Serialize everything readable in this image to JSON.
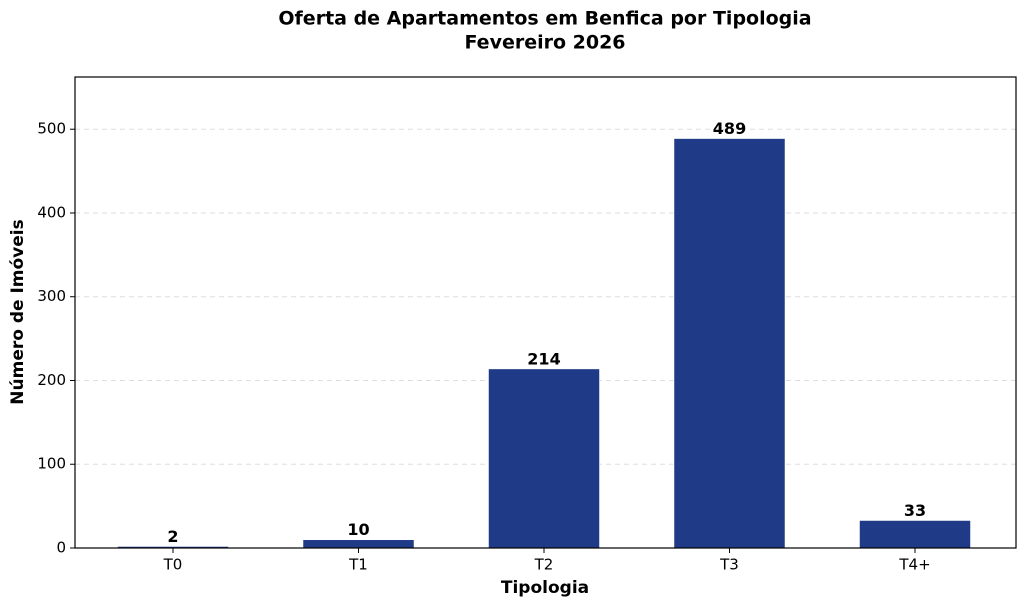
{
  "chart_data": {
    "type": "bar",
    "title": "Oferta de Apartamentos em Benfica por Tipologia",
    "subtitle": "Fevereiro 2026",
    "xlabel": "Tipologia",
    "ylabel": "Número de Imóveis",
    "categories": [
      "T0",
      "T1",
      "T2",
      "T3",
      "T4+"
    ],
    "values": [
      2,
      10,
      214,
      489,
      33
    ],
    "color": "#1f3a87",
    "ylim": [
      0,
      562.35
    ],
    "yticks": [
      0,
      100,
      200,
      300,
      400,
      500
    ],
    "grid": true
  }
}
